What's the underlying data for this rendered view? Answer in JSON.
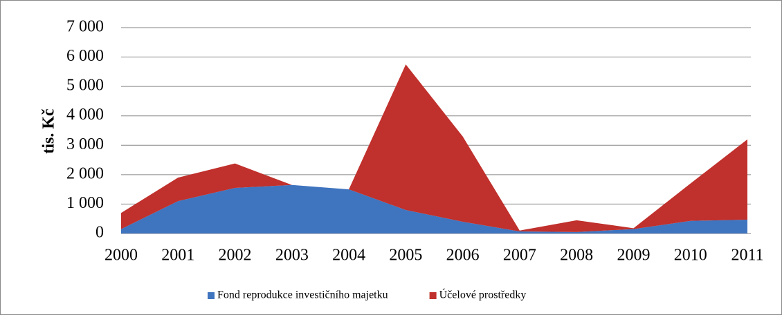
{
  "chart_data": {
    "type": "stacked_area",
    "ylabel": "tis. Kč",
    "categories": [
      "2000",
      "2001",
      "2002",
      "2003",
      "2004",
      "2005",
      "2006",
      "2007",
      "2008",
      "2009",
      "2010",
      "2011"
    ],
    "series": [
      {
        "name": "Fond reprodukce investičního majetku",
        "color": "#3f74bf",
        "values": [
          150,
          1100,
          1550,
          1650,
          1500,
          800,
          400,
          70,
          50,
          150,
          430,
          470
        ]
      },
      {
        "name": "Účelové prostředky",
        "color": "#c0302c",
        "values": [
          550,
          800,
          830,
          0,
          0,
          4950,
          2900,
          30,
          400,
          30,
          1270,
          2730
        ]
      }
    ],
    "ylim": [
      0,
      7000
    ],
    "yticks": [
      0,
      {
        "value": 1000,
        "label": "1 000"
      },
      {
        "value": 2000,
        "label": "2 000"
      },
      {
        "value": 3000,
        "label": "3 000"
      },
      {
        "value": 4000,
        "label": "4 000"
      },
      {
        "value": 5000,
        "label": "5 000"
      },
      {
        "value": 6000,
        "label": "6 000"
      },
      {
        "value": 7000,
        "label": "7 000"
      }
    ],
    "grid": true,
    "legend": "bottom"
  }
}
